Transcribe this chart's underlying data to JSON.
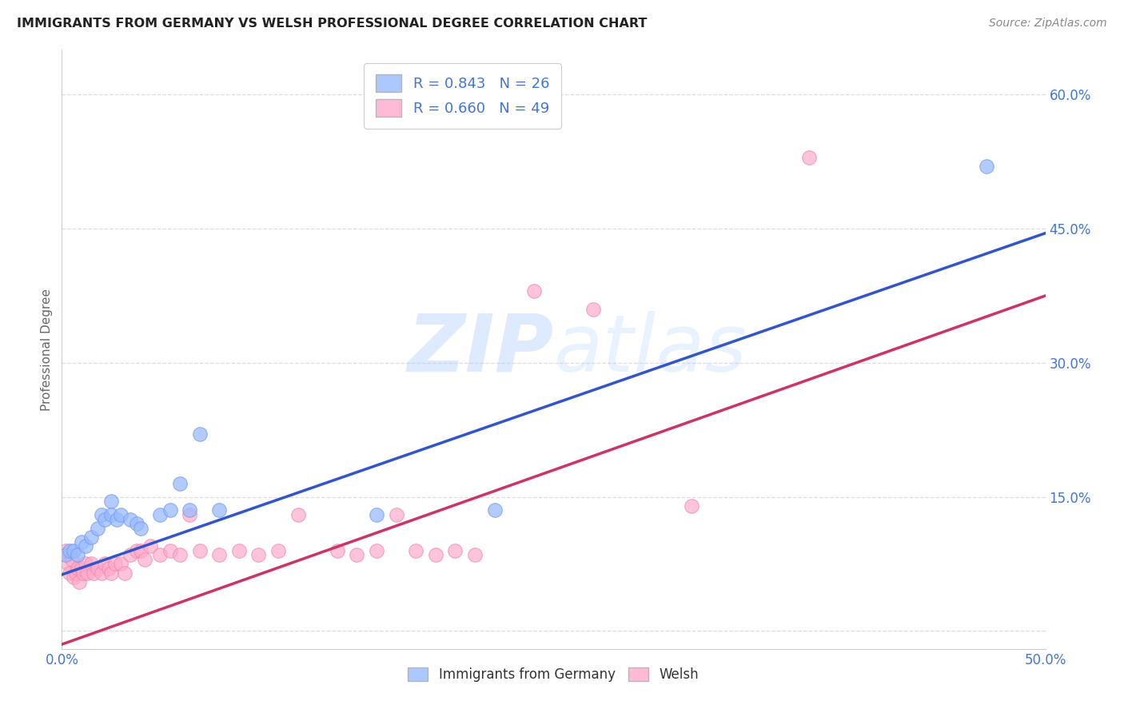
{
  "title": "IMMIGRANTS FROM GERMANY VS WELSH PROFESSIONAL DEGREE CORRELATION CHART",
  "source": "Source: ZipAtlas.com",
  "ylabel_label": "Professional Degree",
  "x_label_bottom": "Immigrants from Germany",
  "x_label_bottom2": "Welsh",
  "xlim": [
    0.0,
    0.5
  ],
  "ylim": [
    -0.02,
    0.65
  ],
  "xticks": [
    0.0,
    0.1,
    0.2,
    0.3,
    0.4,
    0.5
  ],
  "xtick_labels_show": [
    "0.0%",
    "",
    "",
    "",
    "",
    "50.0%"
  ],
  "yticks": [
    0.0,
    0.15,
    0.3,
    0.45,
    0.6
  ],
  "ytick_labels": [
    "",
    "15.0%",
    "30.0%",
    "45.0%",
    "60.0%"
  ],
  "legend_r1": "R = 0.843",
  "legend_n1": "N = 26",
  "legend_r2": "R = 0.660",
  "legend_n2": "N = 49",
  "blue_color": "#99bbff",
  "pink_color": "#ffaacc",
  "blue_scatter_edge": "#7799ee",
  "pink_scatter_edge": "#ee88aa",
  "blue_line_color": "#3355cc",
  "pink_line_color": "#cc3366",
  "tick_label_color": "#4477cc",
  "watermark_color": "#cce0ff",
  "blue_scatter": [
    [
      0.002,
      0.085
    ],
    [
      0.004,
      0.09
    ],
    [
      0.006,
      0.09
    ],
    [
      0.008,
      0.085
    ],
    [
      0.01,
      0.1
    ],
    [
      0.012,
      0.095
    ],
    [
      0.015,
      0.105
    ],
    [
      0.018,
      0.115
    ],
    [
      0.02,
      0.13
    ],
    [
      0.022,
      0.125
    ],
    [
      0.025,
      0.145
    ],
    [
      0.025,
      0.13
    ],
    [
      0.028,
      0.125
    ],
    [
      0.03,
      0.13
    ],
    [
      0.035,
      0.125
    ],
    [
      0.038,
      0.12
    ],
    [
      0.04,
      0.115
    ],
    [
      0.05,
      0.13
    ],
    [
      0.055,
      0.135
    ],
    [
      0.06,
      0.165
    ],
    [
      0.065,
      0.135
    ],
    [
      0.07,
      0.22
    ],
    [
      0.08,
      0.135
    ],
    [
      0.16,
      0.13
    ],
    [
      0.22,
      0.135
    ],
    [
      0.47,
      0.52
    ]
  ],
  "pink_scatter": [
    [
      0.002,
      0.09
    ],
    [
      0.003,
      0.075
    ],
    [
      0.004,
      0.065
    ],
    [
      0.005,
      0.08
    ],
    [
      0.006,
      0.06
    ],
    [
      0.007,
      0.065
    ],
    [
      0.008,
      0.07
    ],
    [
      0.009,
      0.055
    ],
    [
      0.01,
      0.07
    ],
    [
      0.011,
      0.065
    ],
    [
      0.012,
      0.075
    ],
    [
      0.013,
      0.065
    ],
    [
      0.015,
      0.075
    ],
    [
      0.016,
      0.065
    ],
    [
      0.018,
      0.07
    ],
    [
      0.02,
      0.065
    ],
    [
      0.022,
      0.075
    ],
    [
      0.024,
      0.07
    ],
    [
      0.025,
      0.065
    ],
    [
      0.027,
      0.075
    ],
    [
      0.03,
      0.075
    ],
    [
      0.032,
      0.065
    ],
    [
      0.035,
      0.085
    ],
    [
      0.038,
      0.09
    ],
    [
      0.04,
      0.09
    ],
    [
      0.042,
      0.08
    ],
    [
      0.045,
      0.095
    ],
    [
      0.05,
      0.085
    ],
    [
      0.055,
      0.09
    ],
    [
      0.06,
      0.085
    ],
    [
      0.065,
      0.13
    ],
    [
      0.07,
      0.09
    ],
    [
      0.08,
      0.085
    ],
    [
      0.09,
      0.09
    ],
    [
      0.1,
      0.085
    ],
    [
      0.11,
      0.09
    ],
    [
      0.12,
      0.13
    ],
    [
      0.14,
      0.09
    ],
    [
      0.15,
      0.085
    ],
    [
      0.16,
      0.09
    ],
    [
      0.17,
      0.13
    ],
    [
      0.18,
      0.09
    ],
    [
      0.19,
      0.085
    ],
    [
      0.2,
      0.09
    ],
    [
      0.21,
      0.085
    ],
    [
      0.24,
      0.38
    ],
    [
      0.27,
      0.36
    ],
    [
      0.32,
      0.14
    ],
    [
      0.38,
      0.53
    ]
  ],
  "blue_line": [
    [
      0.0,
      0.063
    ],
    [
      0.5,
      0.445
    ]
  ],
  "pink_line": [
    [
      0.0,
      -0.015
    ],
    [
      0.5,
      0.375
    ]
  ]
}
